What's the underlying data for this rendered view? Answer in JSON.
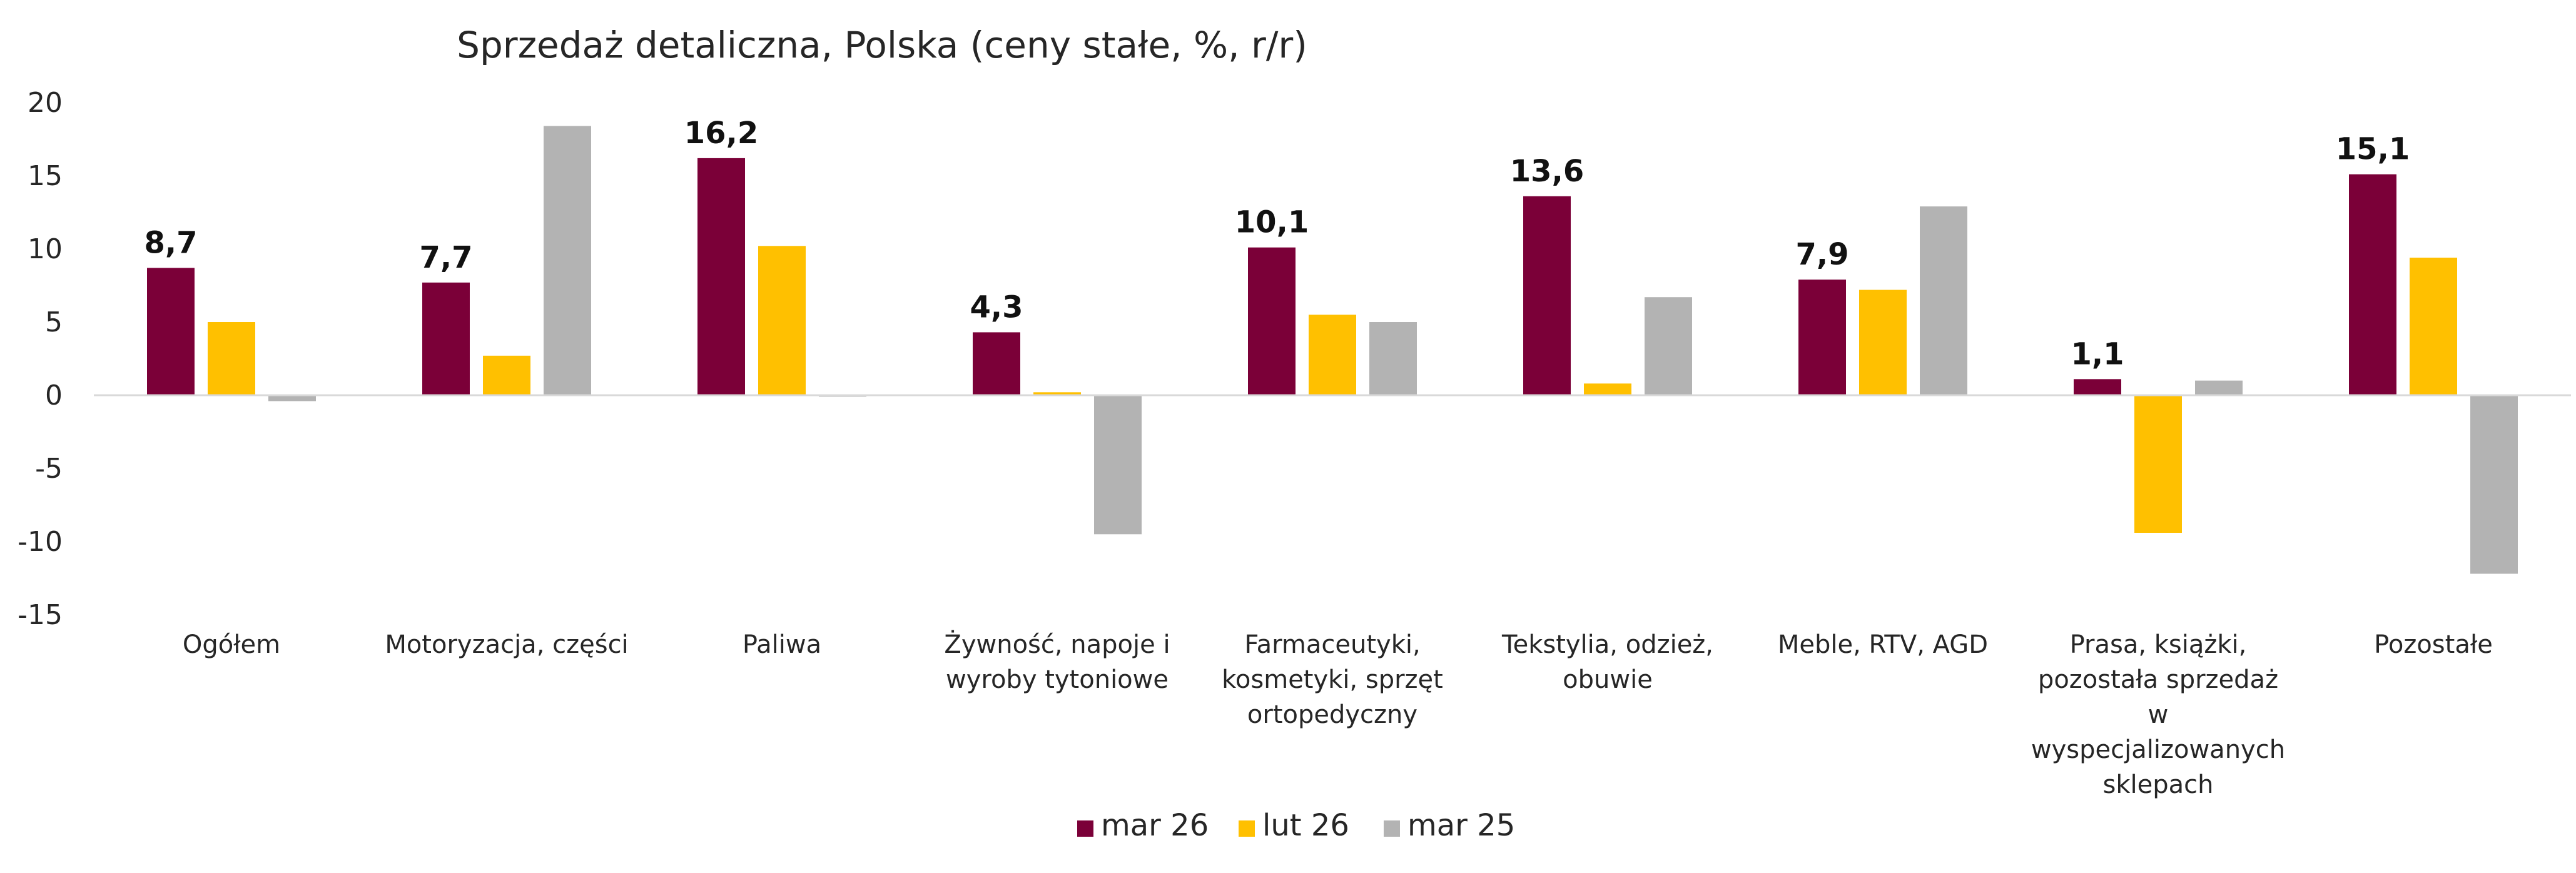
{
  "chart_data": {
    "type": "bar",
    "title": "Sprzedaż detaliczna, Polska (ceny stałe, %, r/r)",
    "xlabel": "",
    "ylabel": "",
    "ylim": [
      -15,
      20
    ],
    "yticks": [
      "20",
      "15",
      "10",
      "5",
      "0",
      "-5",
      "-10",
      "-15"
    ],
    "grid": false,
    "legend_position": "bottom",
    "categories": [
      [
        "Ogółem"
      ],
      [
        "Motoryzacja, części"
      ],
      [
        "Paliwa"
      ],
      [
        "Żywność, napoje i",
        "wyroby tytoniowe"
      ],
      [
        "Farmaceutyki,",
        "kosmetyki, sprzęt",
        "ortopedyczny"
      ],
      [
        "Tekstylia, odzież,",
        "obuwie"
      ],
      [
        "Meble, RTV, AGD"
      ],
      [
        "Prasa, książki,",
        "pozostała sprzedaż",
        "w",
        "wyspecjalizowanych",
        "sklepach"
      ],
      [
        "Pozostałe"
      ]
    ],
    "series": [
      {
        "name": "mar 26",
        "color": "#7B0038",
        "values": [
          8.7,
          7.7,
          16.2,
          4.3,
          10.1,
          13.6,
          7.9,
          1.1,
          15.1
        ]
      },
      {
        "name": "lut 26",
        "color": "#FFC000",
        "values": [
          5.0,
          2.7,
          10.2,
          0.2,
          5.5,
          0.8,
          7.2,
          -9.4,
          9.4
        ]
      },
      {
        "name": "mar 25",
        "color": "#B3B3B3",
        "values": [
          -0.4,
          18.4,
          -0.1,
          -9.5,
          5.0,
          6.7,
          12.9,
          1.0,
          -12.2
        ]
      }
    ],
    "data_labels": [
      "8,7",
      "7,7",
      "16,2",
      "4,3",
      "10,1",
      "13,6",
      "7,9",
      "1,1",
      "15,1"
    ]
  }
}
